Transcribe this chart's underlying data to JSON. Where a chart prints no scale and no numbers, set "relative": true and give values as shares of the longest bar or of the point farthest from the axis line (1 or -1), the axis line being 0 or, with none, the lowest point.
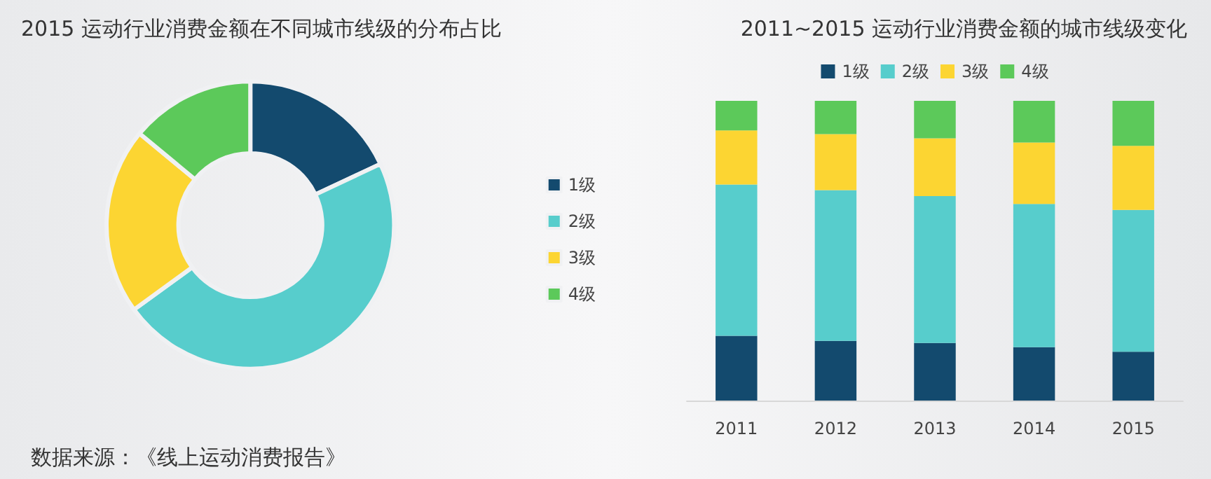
{
  "chart_data": [
    {
      "type": "donut",
      "title": "2015 运动行业消费金额在不同城市线级的分布占比",
      "categories": [
        "1级",
        "2级",
        "3级",
        "4级"
      ],
      "values": [
        18,
        47,
        21,
        14
      ],
      "colors": [
        "#134a6e",
        "#57cdcc",
        "#fcd532",
        "#5cc95a"
      ],
      "legend": "right",
      "annotations": [
        "数据来源：《线上运动消费报告》"
      ]
    },
    {
      "type": "bar",
      "title": "2011~2015 运动行业消费金额的城市线级变化",
      "categories": [
        "2011",
        "2012",
        "2013",
        "2014",
        "2015"
      ],
      "relative": true,
      "stacked": true,
      "legend": "top",
      "series": [
        {
          "name": "1级",
          "color": "#134a6e",
          "values": [
            0.216,
            0.199,
            0.192,
            0.178,
            0.163
          ]
        },
        {
          "name": "2级",
          "color": "#57cdcc",
          "values": [
            0.505,
            0.503,
            0.49,
            0.478,
            0.473
          ]
        },
        {
          "name": "3级",
          "color": "#fcd532",
          "values": [
            0.18,
            0.187,
            0.193,
            0.205,
            0.214
          ]
        },
        {
          "name": "4级",
          "color": "#5cc95a",
          "values": [
            0.099,
            0.111,
            0.125,
            0.139,
            0.15
          ]
        }
      ]
    }
  ]
}
